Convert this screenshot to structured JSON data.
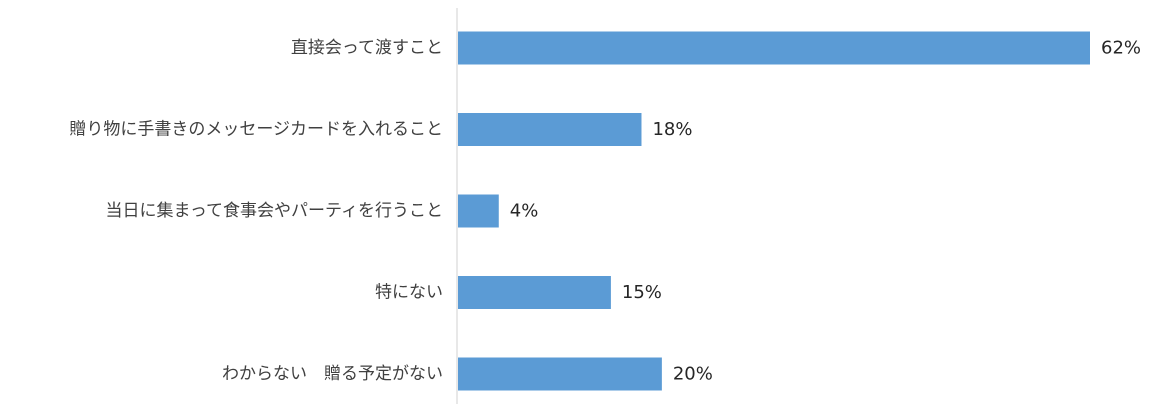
{
  "chart_data": {
    "type": "bar",
    "orientation": "horizontal",
    "categories": [
      "直接会って渡すこと",
      "贈り物に手書きのメッセージカードを入れること",
      "当日に集まって食事会やパーティを行うこと",
      "特にない",
      "わからない　贈る予定がない"
    ],
    "values": [
      62,
      18,
      4,
      15,
      20
    ],
    "value_labels": [
      "62%",
      "18%",
      "4%",
      "15%",
      "20%"
    ],
    "unit": "%",
    "xlim": [
      0,
      62
    ],
    "title": "",
    "xlabel": "",
    "ylabel": "",
    "grid": false,
    "legend": "none",
    "colors": {
      "bar": "#5b9bd5",
      "axis": "#d0d0d0",
      "label_text": "#404040",
      "value_text": "#262626"
    }
  }
}
